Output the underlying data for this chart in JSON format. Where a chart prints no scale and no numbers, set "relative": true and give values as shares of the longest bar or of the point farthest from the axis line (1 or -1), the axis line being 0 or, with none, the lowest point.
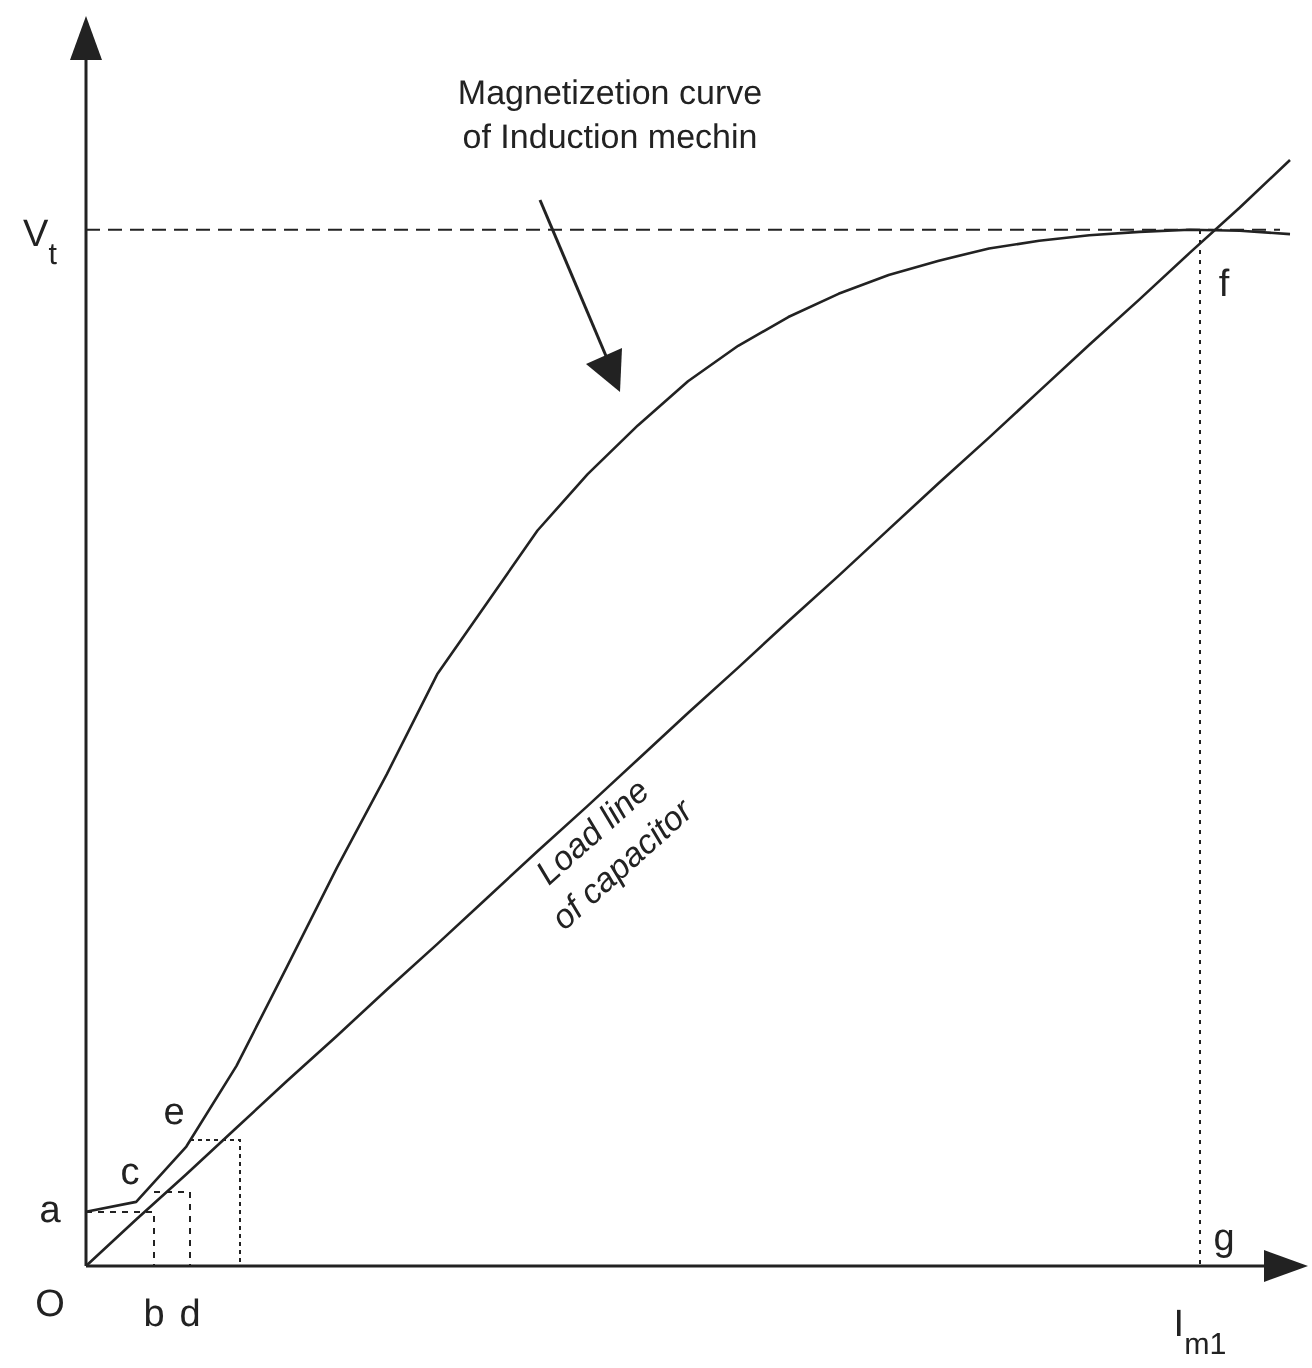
{
  "chart_data": {
    "type": "line",
    "relative": true,
    "categories": [
      null,
      null,
      null,
      null,
      null,
      null,
      null,
      null,
      null,
      null,
      null,
      null,
      null,
      null,
      null,
      null,
      null,
      null,
      null,
      null,
      null,
      null,
      null,
      null,
      null
    ],
    "series": [
      {
        "color": "#222222",
        "values": [
          0.049,
          0.058,
          0.108,
          0.181,
          0.27,
          0.36,
          0.445,
          0.535,
          0.6,
          0.665,
          0.716,
          0.76,
          0.8,
          0.832,
          0.858,
          0.879,
          0.896,
          0.909,
          0.92,
          0.927,
          0.932,
          0.935,
          0.937,
          0.936,
          0.933
        ]
      },
      {
        "color": "#222222",
        "values": [
          0,
          0.042,
          0.083,
          0.125,
          0.167,
          0.208,
          0.25,
          0.291,
          0.333,
          0.375,
          0.416,
          0.458,
          0.5,
          0.541,
          0.583,
          0.624,
          0.666,
          0.708,
          0.749,
          0.791,
          0.833,
          0.874,
          0.916,
          0.957,
          1
        ]
      }
    ],
    "ref_lines": [
      {
        "axis": "y",
        "value": 0.937,
        "label": "V$_{t}$",
        "line_style": "dashed",
        "color": "#222222"
      }
    ],
    "annotations": [
      "Magnetizetion curve\nof Induction mechin",
      "Load line\nof capacitor",
      "O",
      "a",
      "b",
      "c",
      "d",
      "e",
      "f",
      "g",
      "I$_{m1}$"
    ]
  }
}
